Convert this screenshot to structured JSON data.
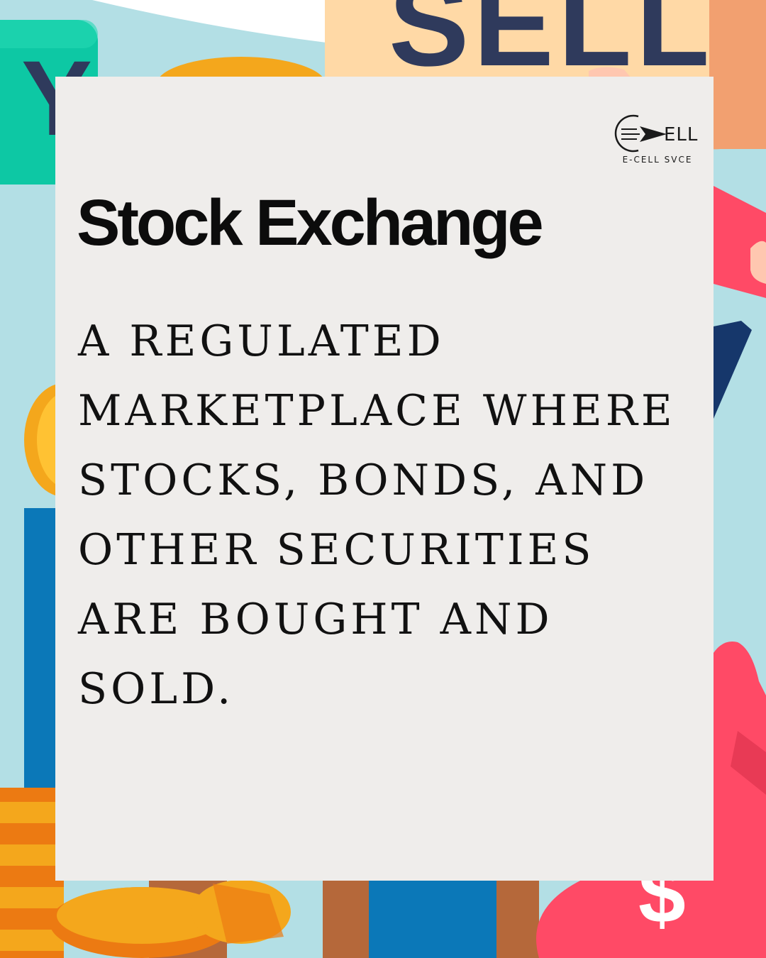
{
  "background": {
    "buy_sign_text": "Y",
    "sell_sign_text": "SELL",
    "colors": {
      "sky": "#b3dfe5",
      "buy_sign": "#0dc8a4",
      "sell_sign": "#ffd9a6",
      "sell_letters": "#2f3a5c",
      "coin_gold": "#f4a71c",
      "coin_orange": "#ec7a12",
      "bag_red": "#ff4a66",
      "bar_blue": "#0b78b8",
      "bar_brown": "#b5683a",
      "arrow_navy": "#16376b"
    }
  },
  "logo": {
    "mark_text": "ELL",
    "caption": "E-CELL SVCE"
  },
  "card": {
    "title": "Stock Exchange",
    "body": "A regulated marketplace where stocks, bonds, and other securities are bought and sold.",
    "background_color": "#efedeb"
  }
}
